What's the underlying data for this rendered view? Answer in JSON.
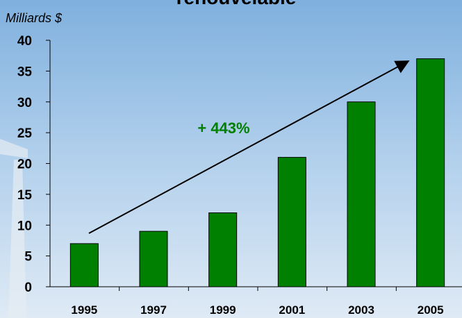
{
  "chart_data": {
    "type": "bar",
    "title": "renouvelable",
    "y_label": "Milliards $",
    "annotation": "+ 443%",
    "categories": [
      "1995",
      "1997",
      "1999",
      "2001",
      "2003",
      "2005"
    ],
    "values": [
      7,
      9,
      12,
      21,
      30,
      37
    ],
    "color": "#008000",
    "ylim": [
      0,
      40
    ],
    "yticks": [
      0,
      5,
      10,
      15,
      20,
      25,
      30,
      35,
      40
    ],
    "grid": false
  }
}
